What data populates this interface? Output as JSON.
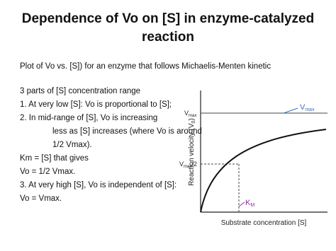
{
  "title_lines": [
    "Dependence of Vo on [S] in enzyme-catalyzed",
    "reaction"
  ],
  "intro": "Plot of Vo vs. [S]) for an enzyme that follows Michaelis-Menten kinetic",
  "lines": [
    " 3 parts of [S] concentration range",
    "1. At very low [S]: Vo is proportional to [S];",
    "2. In mid-range of [S], Vo is increasing",
    "less as [S] increases (where Vo is around",
    "1/2 Vmax).",
    "Km = [S] that gives",
    "Vo = 1/2 Vmax.",
    "3. At very high [S], Vo is independent of [S]:",
    "Vo = Vmax."
  ],
  "figure": {
    "y_label": {
      "main": "Reaction velocity (V",
      "sub": "0",
      "end": ")"
    },
    "x_label": "Substrate concentration [S]",
    "vmax_curve_label": {
      "main": "V",
      "sub": "max"
    },
    "vmax_tick": {
      "main": "V",
      "sub": "max"
    },
    "half_vmax_tick": {
      "main": "V",
      "sub": "max",
      "end": "/2"
    },
    "km_label": {
      "main": "K",
      "sub": "M"
    }
  }
}
